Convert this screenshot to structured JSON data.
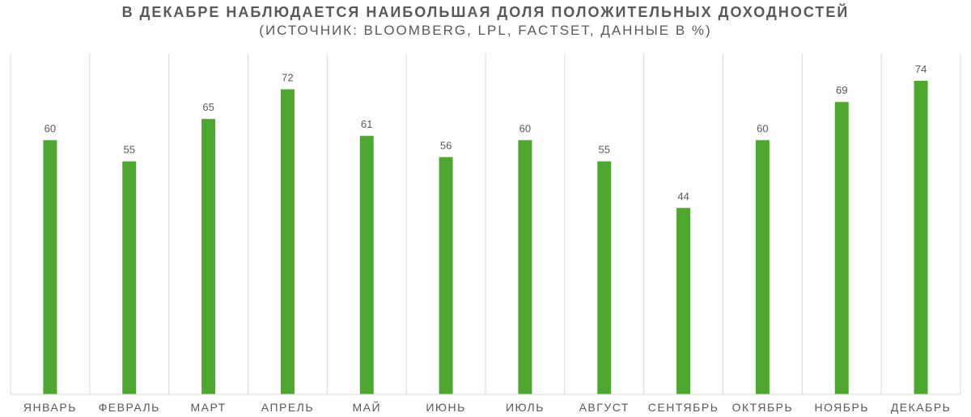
{
  "chart_data": {
    "type": "bar",
    "title": "В ДЕКАБРЕ НАБЛЮДАЕТСЯ НАИБОЛЬШАЯ ДОЛЯ ПОЛОЖИТЕЛЬНЫХ ДОХОДНОСТЕЙ",
    "subtitle": "(ИСТОЧНИК: BLOOMBERG, LPL, FACTSET, ДАННЫЕ В %)",
    "categories": [
      "ЯНВАРЬ",
      "ФЕВРАЛЬ",
      "МАРТ",
      "АПРЕЛЬ",
      "МАЙ",
      "ИЮНЬ",
      "ИЮЛЬ",
      "АВГУСТ",
      "СЕНТЯБРЬ",
      "ОКТЯБРЬ",
      "НОЯБРЬ",
      "ДЕКАБРЬ"
    ],
    "values": [
      60,
      55,
      65,
      72,
      61,
      56,
      60,
      55,
      44,
      60,
      69,
      74
    ],
    "ylim": [
      0,
      80
    ],
    "grid": false,
    "legend": "none",
    "colors": {
      "bar": "#4ea72e",
      "separator": "#d9d9d9",
      "text": "#595959"
    }
  }
}
